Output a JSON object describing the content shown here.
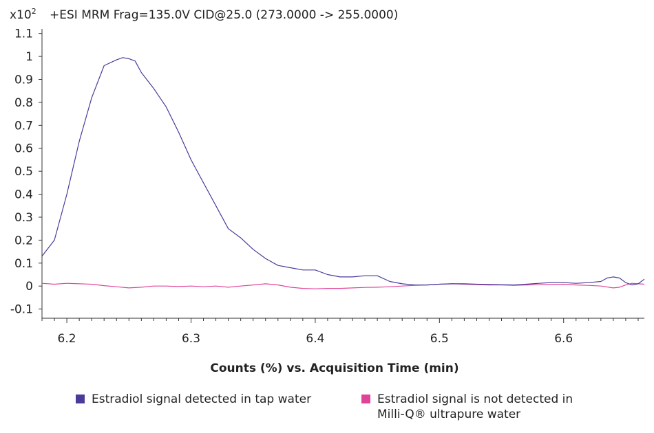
{
  "chart_data": {
    "type": "line",
    "title": "+ESI MRM Frag=135.0V CID@25.0 (273.0000 -> 255.0000)",
    "multiplier_label": "x10",
    "multiplier_exp": "2",
    "xlabel": "Counts (%) vs. Acquisition Time (min)",
    "xlim": [
      6.18,
      6.665
    ],
    "ylim": [
      -0.14,
      1.12
    ],
    "x_ticks": [
      6.2,
      6.3,
      6.4,
      6.5,
      6.6
    ],
    "x_tick_labels": [
      "6.2",
      "6.3",
      "6.4",
      "6.5",
      "6.6"
    ],
    "y_ticks": [
      -0.1,
      0,
      0.1,
      0.2,
      0.3,
      0.4,
      0.5,
      0.6,
      0.7,
      0.8,
      0.9,
      1,
      1.1
    ],
    "y_tick_labels": [
      "-0.1",
      "0",
      "0.1",
      "0.2",
      "0.3",
      "0.4",
      "0.5",
      "0.6",
      "0.7",
      "0.8",
      "0.9",
      "1",
      "1.1"
    ],
    "grid": false,
    "legend_position": "bottom",
    "series": [
      {
        "name": "Estradiol signal detected in tap water",
        "color": "#4a3a9a",
        "x": [
          6.18,
          6.19,
          6.2,
          6.21,
          6.22,
          6.23,
          6.24,
          6.245,
          6.25,
          6.255,
          6.26,
          6.27,
          6.28,
          6.29,
          6.3,
          6.31,
          6.32,
          6.33,
          6.34,
          6.35,
          6.36,
          6.37,
          6.38,
          6.39,
          6.4,
          6.41,
          6.42,
          6.43,
          6.44,
          6.45,
          6.46,
          6.47,
          6.48,
          6.49,
          6.5,
          6.51,
          6.52,
          6.53,
          6.54,
          6.55,
          6.56,
          6.57,
          6.58,
          6.59,
          6.6,
          6.61,
          6.62,
          6.63,
          6.635,
          6.64,
          6.645,
          6.65,
          6.655,
          6.66,
          6.665
        ],
        "y": [
          0.13,
          0.2,
          0.4,
          0.63,
          0.82,
          0.96,
          0.985,
          0.995,
          0.99,
          0.98,
          0.93,
          0.86,
          0.78,
          0.67,
          0.55,
          0.45,
          0.35,
          0.25,
          0.21,
          0.16,
          0.12,
          0.09,
          0.08,
          0.07,
          0.07,
          0.05,
          0.04,
          0.04,
          0.045,
          0.045,
          0.02,
          0.01,
          0.005,
          0.005,
          0.008,
          0.01,
          0.01,
          0.008,
          0.007,
          0.006,
          0.005,
          0.008,
          0.012,
          0.015,
          0.015,
          0.012,
          0.015,
          0.02,
          0.035,
          0.04,
          0.035,
          0.015,
          0.005,
          0.01,
          0.03
        ]
      },
      {
        "name": "Estradiol signal is not detected in Milli-Q® ultrapure water",
        "color": "#e0449a",
        "x": [
          6.18,
          6.19,
          6.2,
          6.21,
          6.22,
          6.23,
          6.24,
          6.25,
          6.26,
          6.27,
          6.28,
          6.29,
          6.3,
          6.31,
          6.32,
          6.33,
          6.34,
          6.35,
          6.36,
          6.37,
          6.38,
          6.39,
          6.4,
          6.41,
          6.42,
          6.43,
          6.44,
          6.45,
          6.46,
          6.47,
          6.48,
          6.49,
          6.5,
          6.51,
          6.52,
          6.53,
          6.54,
          6.55,
          6.56,
          6.57,
          6.58,
          6.59,
          6.6,
          6.61,
          6.62,
          6.63,
          6.64,
          6.645,
          6.65,
          6.655,
          6.66,
          6.665
        ],
        "y": [
          0.012,
          0.008,
          0.012,
          0.01,
          0.008,
          0.002,
          -0.003,
          -0.008,
          -0.005,
          0.0,
          0.0,
          -0.002,
          0.0,
          -0.003,
          0.0,
          -0.005,
          0.0,
          0.005,
          0.01,
          0.005,
          -0.005,
          -0.01,
          -0.012,
          -0.01,
          -0.01,
          -0.008,
          -0.006,
          -0.005,
          -0.003,
          0.0,
          0.003,
          0.005,
          0.008,
          0.01,
          0.008,
          0.006,
          0.005,
          0.005,
          0.003,
          0.005,
          0.006,
          0.007,
          0.008,
          0.005,
          0.003,
          0.0,
          -0.008,
          -0.005,
          0.005,
          0.012,
          0.01,
          0.008
        ]
      }
    ]
  }
}
